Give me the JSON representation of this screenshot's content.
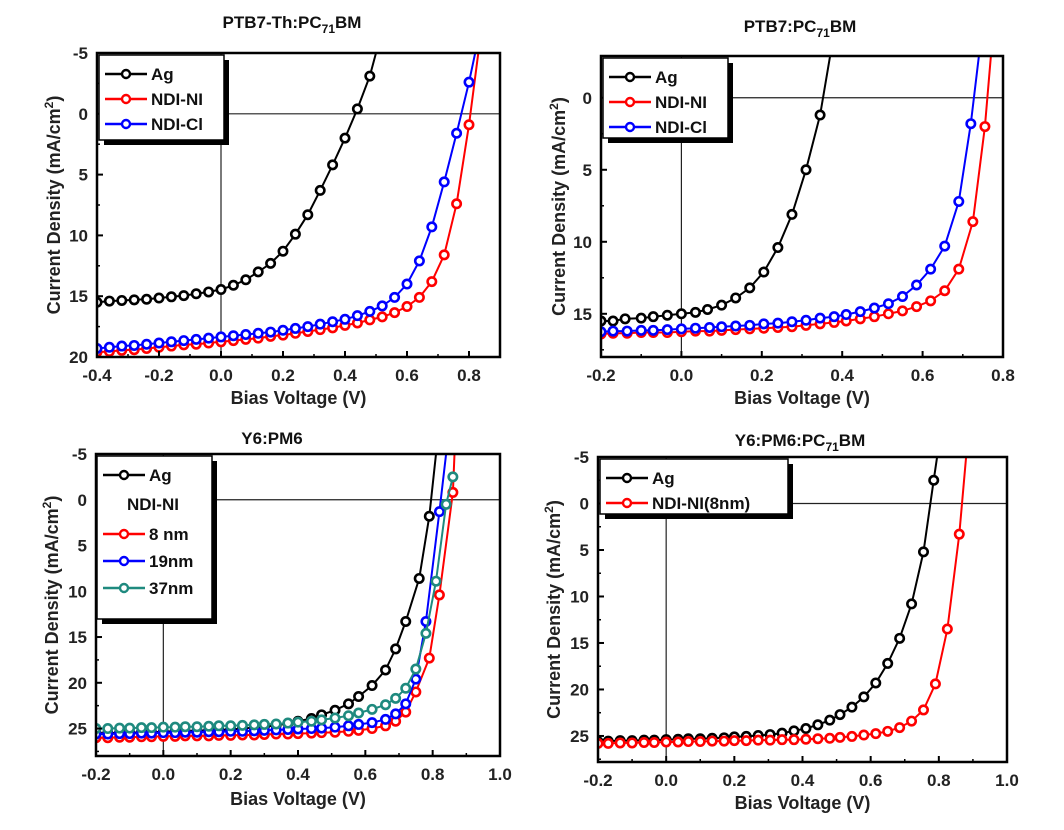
{
  "figure": {
    "description": "Four J-V curve panels of organic solar cells"
  },
  "chart_data": [
    {
      "type": "line",
      "title": "PTB7-Th:PC71BM",
      "title_main": "PTB7-Th:PC",
      "title_sub": "71",
      "title_tail": "BM",
      "xlabel": "Bias Voltage (V)",
      "ylabel": "Current Density (mA/cm2)",
      "ylabel_main": "Current Density (mA/cm",
      "ylabel_sup": "2",
      "ylabel_tail": ")",
      "xlim": [
        -0.4,
        0.9
      ],
      "ylim": [
        -5,
        20
      ],
      "y_inverted": true,
      "xticks": [
        -0.4,
        -0.2,
        0.0,
        0.2,
        0.4,
        0.6,
        0.8
      ],
      "xtick_labels": [
        "-0.4",
        "-0.2",
        "0.0",
        "0.2",
        "0.4",
        "0.6",
        "0.8"
      ],
      "yticks": [
        -5,
        0,
        5,
        10,
        15,
        20
      ],
      "ytick_labels": [
        "-5",
        "0",
        "5",
        "10",
        "15",
        "20"
      ],
      "legend": "top-left",
      "zero_lines": true,
      "series": [
        {
          "name": "Ag",
          "color": "#000000",
          "x": [
            -0.4,
            -0.36,
            -0.32,
            -0.28,
            -0.24,
            -0.2,
            -0.16,
            -0.12,
            -0.08,
            -0.04,
            0.0,
            0.04,
            0.08,
            0.12,
            0.16,
            0.2,
            0.24,
            0.28,
            0.32,
            0.36,
            0.4,
            0.44,
            0.48,
            0.5
          ],
          "y": [
            15.5,
            15.4,
            15.35,
            15.3,
            15.25,
            15.15,
            15.05,
            14.95,
            14.8,
            14.65,
            14.45,
            14.1,
            13.65,
            13.0,
            12.3,
            11.3,
            9.9,
            8.3,
            6.3,
            4.2,
            2.0,
            -0.4,
            -3.1,
            -5.0
          ]
        },
        {
          "name": "NDI-NI",
          "color": "#ff0000",
          "x": [
            -0.4,
            -0.36,
            -0.32,
            -0.28,
            -0.24,
            -0.2,
            -0.16,
            -0.12,
            -0.08,
            -0.04,
            0.0,
            0.04,
            0.08,
            0.12,
            0.16,
            0.2,
            0.24,
            0.28,
            0.32,
            0.36,
            0.4,
            0.44,
            0.48,
            0.52,
            0.56,
            0.6,
            0.64,
            0.68,
            0.72,
            0.76,
            0.8,
            0.83
          ],
          "y": [
            19.6,
            19.55,
            19.45,
            19.4,
            19.3,
            19.2,
            19.1,
            19.0,
            18.95,
            18.85,
            18.75,
            18.65,
            18.55,
            18.45,
            18.3,
            18.2,
            18.05,
            17.9,
            17.75,
            17.6,
            17.4,
            17.2,
            16.95,
            16.7,
            16.35,
            15.85,
            15.1,
            13.8,
            11.6,
            7.4,
            0.9,
            -5.0
          ]
        },
        {
          "name": "NDI-Cl",
          "color": "#0000ff",
          "x": [
            -0.4,
            -0.36,
            -0.32,
            -0.28,
            -0.24,
            -0.2,
            -0.16,
            -0.12,
            -0.08,
            -0.04,
            0.0,
            0.04,
            0.08,
            0.12,
            0.16,
            0.2,
            0.24,
            0.28,
            0.32,
            0.36,
            0.4,
            0.44,
            0.48,
            0.52,
            0.56,
            0.6,
            0.64,
            0.68,
            0.72,
            0.76,
            0.8,
            0.82
          ],
          "y": [
            19.3,
            19.2,
            19.1,
            19.05,
            18.95,
            18.85,
            18.75,
            18.65,
            18.55,
            18.45,
            18.35,
            18.25,
            18.15,
            18.05,
            17.95,
            17.8,
            17.65,
            17.5,
            17.3,
            17.1,
            16.9,
            16.6,
            16.25,
            15.8,
            15.1,
            14.0,
            12.1,
            9.3,
            5.6,
            1.6,
            -2.6,
            -5.0
          ]
        }
      ]
    },
    {
      "type": "line",
      "title": "PTB7:PC71BM",
      "title_main": "PTB7:PC",
      "title_sub": "71",
      "title_tail": "BM",
      "xlabel": "Bias Voltage (V)",
      "ylabel": "Current Density (mA/cm2)",
      "ylabel_main": "Current Density (mA/cm",
      "ylabel_sup": "2",
      "ylabel_tail": ")",
      "xlim": [
        -0.2,
        0.8
      ],
      "ylim": [
        -2.9,
        18
      ],
      "y_inverted": true,
      "xticks": [
        -0.2,
        0.0,
        0.2,
        0.4,
        0.6,
        0.8
      ],
      "xtick_labels": [
        "-0.2",
        "0.0",
        "0.2",
        "0.4",
        "0.6",
        "0.8"
      ],
      "yticks": [
        0,
        5,
        10,
        15
      ],
      "ytick_labels": [
        "0",
        "5",
        "10",
        "15"
      ],
      "legend": "top-left",
      "zero_lines": true,
      "series": [
        {
          "name": "Ag",
          "color": "#000000",
          "x": [
            -0.2,
            -0.17,
            -0.14,
            -0.1,
            -0.07,
            -0.035,
            0.0,
            0.035,
            0.065,
            0.1,
            0.135,
            0.17,
            0.205,
            0.24,
            0.275,
            0.31,
            0.345,
            0.37
          ],
          "y": [
            15.5,
            15.5,
            15.35,
            15.3,
            15.2,
            15.1,
            15.0,
            14.9,
            14.7,
            14.4,
            13.9,
            13.2,
            12.1,
            10.4,
            8.1,
            5.0,
            1.2,
            -2.9
          ]
        },
        {
          "name": "NDI-NI",
          "color": "#ff0000",
          "x": [
            -0.2,
            -0.17,
            -0.135,
            -0.1,
            -0.07,
            -0.035,
            0.0,
            0.035,
            0.07,
            0.1,
            0.135,
            0.17,
            0.205,
            0.24,
            0.275,
            0.31,
            0.345,
            0.38,
            0.41,
            0.445,
            0.48,
            0.515,
            0.55,
            0.585,
            0.62,
            0.655,
            0.69,
            0.725,
            0.755,
            0.77
          ],
          "y": [
            16.4,
            16.35,
            16.35,
            16.3,
            16.3,
            16.3,
            16.25,
            16.2,
            16.2,
            16.15,
            16.1,
            16.05,
            16.0,
            15.95,
            15.9,
            15.8,
            15.7,
            15.6,
            15.5,
            15.35,
            15.2,
            15.0,
            14.8,
            14.5,
            14.1,
            13.4,
            11.9,
            8.6,
            2.0,
            -2.9
          ]
        },
        {
          "name": "NDI-Cl",
          "color": "#0000ff",
          "x": [
            -0.2,
            -0.17,
            -0.135,
            -0.1,
            -0.07,
            -0.035,
            0.0,
            0.035,
            0.07,
            0.1,
            0.135,
            0.17,
            0.205,
            0.24,
            0.275,
            0.31,
            0.345,
            0.38,
            0.41,
            0.445,
            0.48,
            0.515,
            0.55,
            0.585,
            0.62,
            0.655,
            0.69,
            0.72,
            0.74
          ],
          "y": [
            16.25,
            16.2,
            16.2,
            16.15,
            16.15,
            16.1,
            16.05,
            16.0,
            15.95,
            15.9,
            15.85,
            15.8,
            15.7,
            15.65,
            15.55,
            15.45,
            15.3,
            15.2,
            15.05,
            14.85,
            14.6,
            14.3,
            13.8,
            13.0,
            11.9,
            10.3,
            7.2,
            1.8,
            -2.9
          ]
        }
      ]
    },
    {
      "type": "line",
      "title": "Y6:PM6",
      "xlabel": "Bias Voltage (V)",
      "ylabel": "Current Density (mA/cm2)",
      "ylabel_main": "Current Density (mA/cm",
      "ylabel_sup": "2",
      "ylabel_tail": ")",
      "xlim": [
        -0.2,
        1.0
      ],
      "ylim": [
        -5,
        28
      ],
      "y_inverted": true,
      "xticks": [
        -0.2,
        0.0,
        0.2,
        0.4,
        0.6,
        0.8,
        1.0
      ],
      "xtick_labels": [
        "-0.2",
        "0.0",
        "0.2",
        "0.4",
        "0.6",
        "0.8",
        "1.0"
      ],
      "yticks": [
        -5,
        0,
        5,
        10,
        15,
        20,
        25
      ],
      "ytick_labels": [
        "-5",
        "0",
        "5",
        "10",
        "15",
        "20",
        "25"
      ],
      "legend": "top-left",
      "legend_group_title": "NDI-NI",
      "zero_lines": true,
      "series": [
        {
          "name": "Ag",
          "color": "#000000",
          "x": [
            -0.2,
            -0.165,
            -0.13,
            -0.1,
            -0.065,
            -0.035,
            0.0,
            0.035,
            0.065,
            0.1,
            0.135,
            0.165,
            0.2,
            0.235,
            0.27,
            0.3,
            0.335,
            0.37,
            0.4,
            0.44,
            0.47,
            0.51,
            0.55,
            0.58,
            0.62,
            0.66,
            0.69,
            0.72,
            0.76,
            0.79,
            0.81
          ],
          "y": [
            25.5,
            25.5,
            25.45,
            25.45,
            25.4,
            25.4,
            25.35,
            25.3,
            25.3,
            25.25,
            25.2,
            25.15,
            25.1,
            25.0,
            24.9,
            24.8,
            24.65,
            24.45,
            24.2,
            23.9,
            23.5,
            23.0,
            22.3,
            21.5,
            20.3,
            18.6,
            16.3,
            13.3,
            8.6,
            1.8,
            -5.0
          ]
        },
        {
          "name": "8 nm",
          "color": "#ff0000",
          "x": [
            -0.2,
            -0.165,
            -0.13,
            -0.1,
            -0.065,
            -0.035,
            0.0,
            0.035,
            0.065,
            0.1,
            0.135,
            0.165,
            0.2,
            0.235,
            0.27,
            0.3,
            0.335,
            0.37,
            0.4,
            0.44,
            0.47,
            0.51,
            0.55,
            0.58,
            0.62,
            0.66,
            0.69,
            0.72,
            0.75,
            0.79,
            0.82,
            0.86,
            0.865
          ],
          "y": [
            26.0,
            26.0,
            25.95,
            25.95,
            25.9,
            25.9,
            25.85,
            25.85,
            25.8,
            25.8,
            25.8,
            25.75,
            25.75,
            25.7,
            25.7,
            25.65,
            25.6,
            25.6,
            25.55,
            25.5,
            25.45,
            25.4,
            25.3,
            25.2,
            25.0,
            24.7,
            24.2,
            23.2,
            21.0,
            17.3,
            10.4,
            -0.8,
            -5.0
          ]
        },
        {
          "name": "19nm",
          "color": "#0000ff",
          "x": [
            -0.2,
            -0.165,
            -0.13,
            -0.1,
            -0.065,
            -0.035,
            0.0,
            0.035,
            0.065,
            0.1,
            0.135,
            0.165,
            0.2,
            0.235,
            0.27,
            0.3,
            0.335,
            0.37,
            0.4,
            0.44,
            0.47,
            0.51,
            0.55,
            0.58,
            0.62,
            0.66,
            0.69,
            0.72,
            0.75,
            0.78,
            0.82,
            0.84,
            0.855
          ],
          "y": [
            25.6,
            25.6,
            25.55,
            25.55,
            25.5,
            25.5,
            25.45,
            25.45,
            25.4,
            25.4,
            25.35,
            25.35,
            25.3,
            25.3,
            25.25,
            25.2,
            25.15,
            25.1,
            25.05,
            25.0,
            24.95,
            24.85,
            24.7,
            24.55,
            24.35,
            24.0,
            23.4,
            22.3,
            19.6,
            13.3,
            1.3,
            -5.0,
            -5.0
          ]
        },
        {
          "name": "37nm",
          "color": "#1f8a7f",
          "x": [
            -0.2,
            -0.165,
            -0.13,
            -0.1,
            -0.065,
            -0.035,
            0.0,
            0.035,
            0.065,
            0.1,
            0.135,
            0.165,
            0.2,
            0.235,
            0.27,
            0.3,
            0.335,
            0.37,
            0.4,
            0.44,
            0.47,
            0.51,
            0.55,
            0.58,
            0.62,
            0.66,
            0.69,
            0.72,
            0.75,
            0.78,
            0.81,
            0.84,
            0.86
          ],
          "y": [
            25.0,
            25.0,
            24.95,
            24.95,
            24.9,
            24.9,
            24.85,
            24.85,
            24.8,
            24.8,
            24.75,
            24.7,
            24.7,
            24.65,
            24.6,
            24.55,
            24.5,
            24.4,
            24.3,
            24.2,
            24.05,
            23.85,
            23.6,
            23.3,
            22.9,
            22.4,
            21.7,
            20.6,
            18.5,
            14.6,
            8.9,
            0.5,
            -2.5
          ]
        }
      ]
    },
    {
      "type": "line",
      "title": "Y6:PM6:PC71BM",
      "title_main": "Y6:PM6:PC",
      "title_sub": "71",
      "title_tail": "BM",
      "xlabel": "Bias Voltage (V)",
      "ylabel": "Current Density (mA/cm2)",
      "ylabel_main": "Current Density (mA/cm",
      "ylabel_sup": "2",
      "ylabel_tail": ")",
      "xlim": [
        -0.2,
        1.0
      ],
      "ylim": [
        -5,
        27.8
      ],
      "y_inverted": true,
      "xticks": [
        -0.2,
        0.0,
        0.2,
        0.4,
        0.6,
        0.8,
        1.0
      ],
      "xtick_labels": [
        "-0.2",
        "0.0",
        "0.2",
        "0.4",
        "0.6",
        "0.8",
        "1.0"
      ],
      "yticks": [
        -5,
        0,
        5,
        10,
        15,
        20,
        25
      ],
      "ytick_labels": [
        "-5",
        "0",
        "5",
        "10",
        "15",
        "20",
        "25"
      ],
      "legend": "top-left",
      "zero_lines": true,
      "series": [
        {
          "name": "Ag",
          "color": "#000000",
          "x": [
            -0.2,
            -0.17,
            -0.135,
            -0.1,
            -0.065,
            -0.035,
            0.0,
            0.035,
            0.065,
            0.1,
            0.135,
            0.17,
            0.2,
            0.235,
            0.27,
            0.305,
            0.34,
            0.375,
            0.41,
            0.445,
            0.48,
            0.51,
            0.545,
            0.58,
            0.615,
            0.65,
            0.685,
            0.72,
            0.755,
            0.785,
            0.795
          ],
          "y": [
            25.6,
            25.55,
            25.5,
            25.5,
            25.45,
            25.45,
            25.4,
            25.35,
            25.3,
            25.3,
            25.25,
            25.2,
            25.1,
            25.05,
            24.95,
            24.85,
            24.7,
            24.45,
            24.2,
            23.8,
            23.3,
            22.7,
            21.9,
            20.8,
            19.3,
            17.2,
            14.5,
            10.8,
            5.2,
            -2.5,
            -5.0
          ]
        },
        {
          "name": "NDI-NI(8nm)",
          "color": "#ff0000",
          "x": [
            -0.2,
            -0.17,
            -0.135,
            -0.1,
            -0.065,
            -0.035,
            0.0,
            0.035,
            0.065,
            0.1,
            0.135,
            0.17,
            0.2,
            0.235,
            0.27,
            0.305,
            0.34,
            0.375,
            0.41,
            0.445,
            0.48,
            0.51,
            0.545,
            0.58,
            0.615,
            0.65,
            0.685,
            0.72,
            0.755,
            0.79,
            0.825,
            0.86,
            0.88
          ],
          "y": [
            25.8,
            25.8,
            25.75,
            25.75,
            25.7,
            25.7,
            25.65,
            25.65,
            25.6,
            25.6,
            25.55,
            25.55,
            25.5,
            25.5,
            25.45,
            25.45,
            25.4,
            25.4,
            25.35,
            25.3,
            25.25,
            25.15,
            25.05,
            24.9,
            24.75,
            24.5,
            24.1,
            23.4,
            22.2,
            19.4,
            13.5,
            3.3,
            -5.0
          ]
        }
      ]
    }
  ]
}
